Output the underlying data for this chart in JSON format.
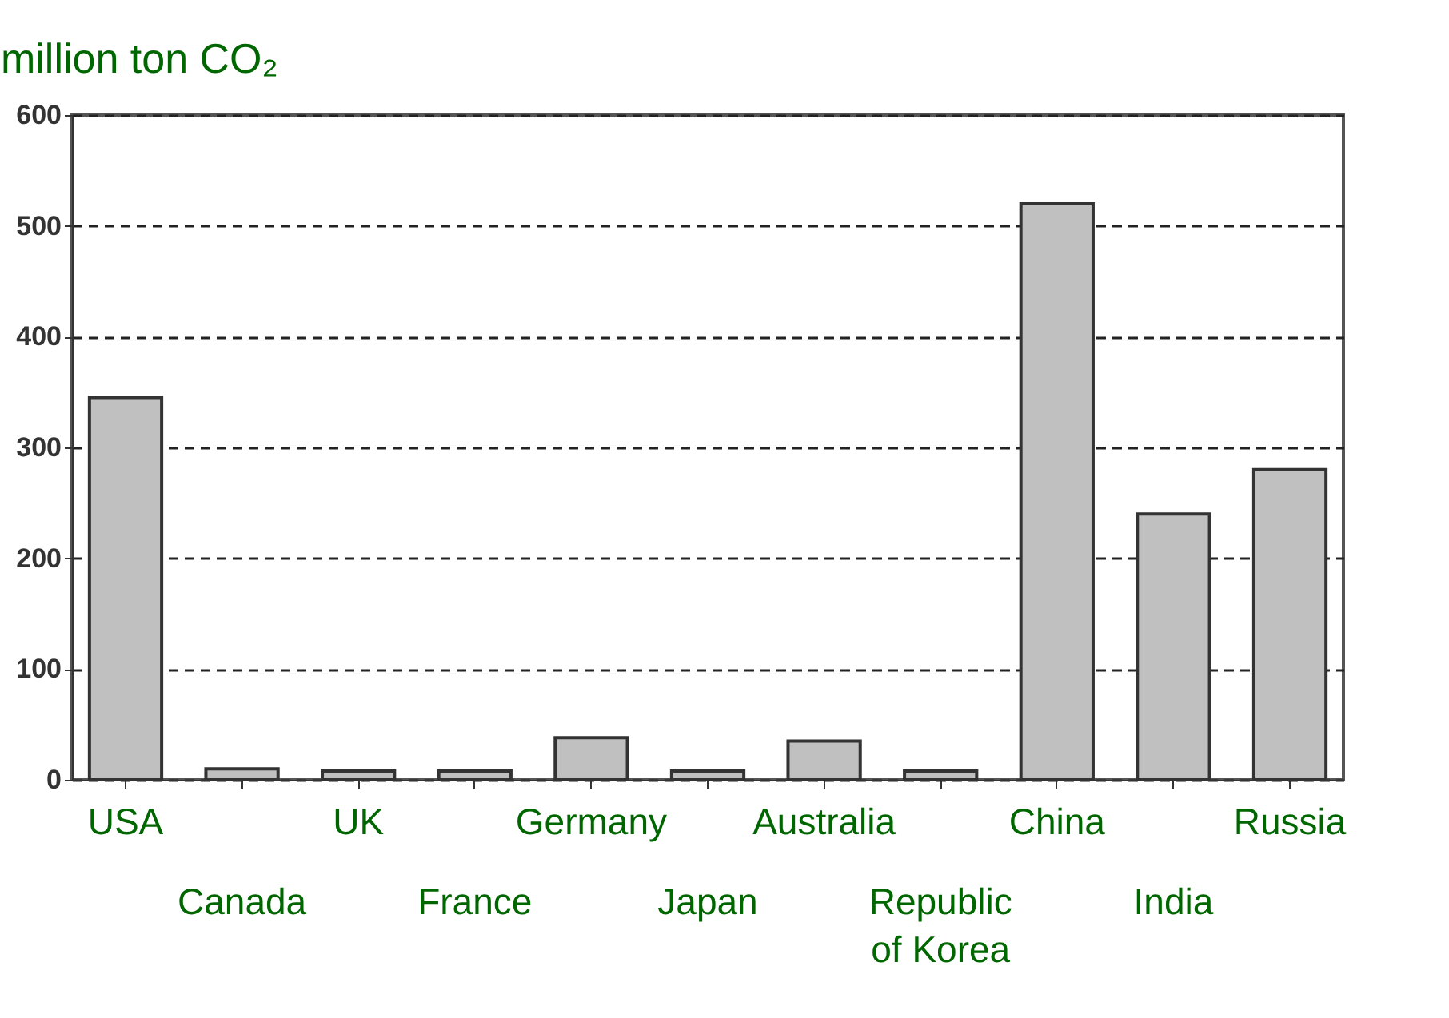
{
  "chart_data": {
    "type": "bar",
    "ylabel": "million ton CO₂",
    "categories": [
      "USA",
      "Canada",
      "UK",
      "France",
      "Germany",
      "Japan",
      "Australia",
      "Republic of Korea",
      "China",
      "India",
      "Russia"
    ],
    "values": [
      345,
      10,
      8,
      8,
      38,
      8,
      35,
      8,
      520,
      240,
      280
    ],
    "color": "#c0c0c0",
    "ylim": [
      0,
      600
    ],
    "yticks": [
      0,
      100,
      200,
      300,
      400,
      500,
      600
    ],
    "grid": "y",
    "legend": false
  }
}
